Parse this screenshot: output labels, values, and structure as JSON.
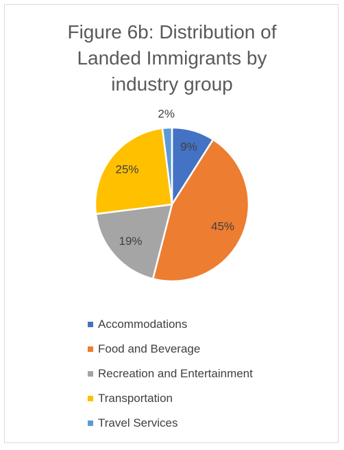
{
  "chart_data": {
    "type": "pie",
    "title_lines": [
      "Figure 6b: Distribution of",
      "Landed Immigrants by",
      "industry group"
    ],
    "categories": [
      "Accommodations",
      "Food and Beverage",
      "Recreation and Entertainment",
      "Transportation",
      "Travel Services"
    ],
    "values": [
      9,
      45,
      19,
      25,
      2
    ],
    "data_labels": [
      "9%",
      "45%",
      "19%",
      "25%",
      "2%"
    ],
    "colors": [
      "#4472c4",
      "#ed7d31",
      "#a5a5a5",
      "#ffc000",
      "#5b9bd5"
    ],
    "legend_position": "bottom",
    "start_angle": "12 o'clock, clockwise"
  }
}
